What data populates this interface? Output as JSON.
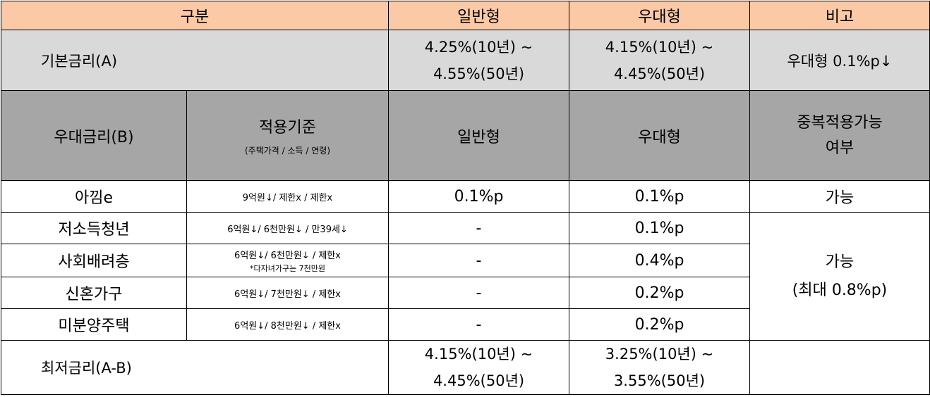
{
  "header": {
    "col1": "구분",
    "col2": "일반형",
    "col3": "우대형",
    "col4": "비고"
  },
  "base_rate": {
    "label": "기본금리(A)",
    "general_line1": "4.25%(10년)  ~",
    "general_line2": "4.55%(50년)",
    "preferred_line1": "4.15%(10년)  ~",
    "preferred_line2": "4.45%(50년)",
    "note": "우대형  0.1%p↓"
  },
  "bonus_header": {
    "label": "우대금리(B)",
    "criteria_title": "적용기준",
    "criteria_sub": "(주택가격 / 소득 / 연령)",
    "general": "일반형",
    "preferred": "우대형",
    "dup_line1": "중복적용가능",
    "dup_line2": "여부"
  },
  "rows": [
    {
      "name": "아낌e",
      "criteria": "9억원↓/ 제한x / 제한x",
      "criteria_note": "",
      "general": "0.1%p",
      "preferred": "0.1%p"
    },
    {
      "name": "저소득청년",
      "criteria": "6억원↓/ 6천만원↓ / 만39세↓",
      "criteria_note": "",
      "general": "-",
      "preferred": "0.1%p"
    },
    {
      "name": "사회배려층",
      "criteria": "6억원↓/ 6천만원↓  / 제한x",
      "criteria_note": "*다자녀가구는 7천만원",
      "general": "-",
      "preferred": "0.4%p"
    },
    {
      "name": "신혼가구",
      "criteria": "6억원↓/ 7천만원↓  / 제한x",
      "criteria_note": "",
      "general": "-",
      "preferred": "0.2%p"
    },
    {
      "name": "미분양주택",
      "criteria": "6억원↓/ 8천만원↓  / 제한x",
      "criteria_note": "",
      "general": "-",
      "preferred": "0.2%p"
    }
  ],
  "row1_dup": "가능",
  "group_dup_line1": "가능",
  "group_dup_line2": "(최대  0.8%p)",
  "min_rate": {
    "label": "최저금리(A-B)",
    "general_line1": "4.15%(10년)  ~",
    "general_line2": "4.45%(50년)",
    "preferred_line1": "3.25%(10년)  ~",
    "preferred_line2": "3.55%(50년)",
    "note": ""
  }
}
